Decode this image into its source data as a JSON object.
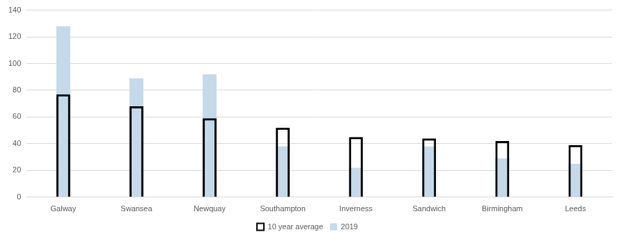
{
  "chart_data": {
    "type": "bar",
    "categories": [
      "Galway",
      "Swansea",
      "Newquay",
      "Southampton",
      "Inverness",
      "Sandwich",
      "Birmingham",
      "Leeds"
    ],
    "series": [
      {
        "name": "10 year average",
        "color": "#000000",
        "marker": "outline",
        "values": [
          77,
          68,
          59,
          52,
          45,
          44,
          42,
          39
        ]
      },
      {
        "name": "2019",
        "color": "#c5d9ea",
        "marker": "filled",
        "values": [
          128,
          89,
          92,
          38,
          22,
          38,
          29,
          25
        ]
      }
    ],
    "ylim": [
      0,
      140
    ],
    "yticks": [
      0,
      20,
      40,
      60,
      80,
      100,
      120,
      140
    ],
    "grid": true,
    "legend": "bottom",
    "stacked": false,
    "data_labels": false
  }
}
